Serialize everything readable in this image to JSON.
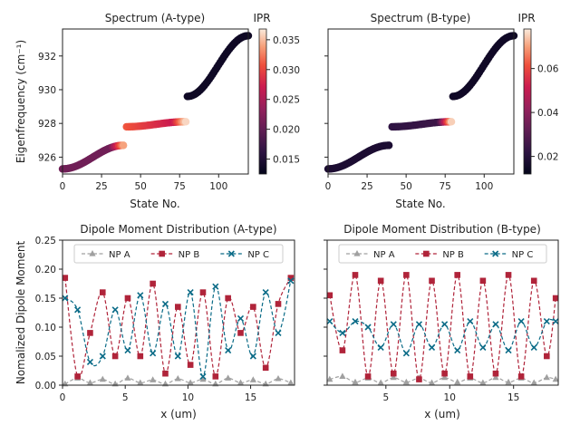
{
  "chart_data": [
    {
      "type": "scatter",
      "title": "Spectrum (A-type)",
      "xlabel": "State No.",
      "ylabel": "Eigenfrequency (cm⁻¹)",
      "xlim": [
        0,
        119
      ],
      "ylim": [
        925.0,
        933.6
      ],
      "xticks": [
        "0",
        "25",
        "50",
        "75",
        "100"
      ],
      "yticks": [
        "926",
        "928",
        "930",
        "932"
      ],
      "colorbar": {
        "label": "IPR",
        "range": [
          0.0125,
          0.0368
        ],
        "ticks": [
          "0.015",
          "0.020",
          "0.025",
          "0.030",
          "0.035"
        ]
      },
      "segments": [
        {
          "x": [
            0,
            39
          ],
          "y": [
            925.3,
            926.7
          ],
          "ipr": [
            0.021,
            0.021,
            0.034
          ]
        },
        {
          "x": [
            41,
            79
          ],
          "y": [
            927.8,
            928.1
          ],
          "ipr": [
            0.031,
            0.027,
            0.036
          ]
        },
        {
          "x": [
            80,
            119
          ],
          "y": [
            929.6,
            933.2
          ],
          "ipr": [
            0.0135,
            0.0135,
            0.0135
          ]
        }
      ]
    },
    {
      "type": "scatter",
      "title": "Spectrum (B-type)",
      "xlabel": "State No.",
      "ylabel": "",
      "xlim": [
        0,
        119
      ],
      "ylim": [
        925.0,
        933.6
      ],
      "xticks": [
        "0",
        "25",
        "50",
        "75",
        "100"
      ],
      "colorbar": {
        "label": "IPR",
        "range": [
          0.012,
          0.078
        ],
        "ticks": [
          "0.02",
          "0.04",
          "0.06"
        ]
      },
      "segments": [
        {
          "x": [
            0,
            39
          ],
          "y": [
            925.3,
            926.7
          ],
          "ipr": [
            0.018,
            0.018,
            0.018
          ]
        },
        {
          "x": [
            41,
            79
          ],
          "y": [
            927.8,
            928.1
          ],
          "ipr": [
            0.022,
            0.025,
            0.075
          ]
        },
        {
          "x": [
            80,
            119
          ],
          "y": [
            929.6,
            933.2
          ],
          "ipr": [
            0.015,
            0.015,
            0.015
          ]
        }
      ]
    },
    {
      "type": "line",
      "title": "Dipole Moment Distribution (A-type)",
      "xlabel": "x (um)",
      "ylabel": "Nomalized Dipole Moment",
      "xlim": [
        0,
        18.5
      ],
      "ylim": [
        0,
        0.25
      ],
      "xticks": [
        "0",
        "5",
        "10",
        "15"
      ],
      "yticks": [
        "0.00",
        "0.05",
        "0.10",
        "0.15",
        "0.20",
        "0.25"
      ],
      "legend": [
        "NP A",
        "NP B",
        "NP C"
      ],
      "x": [
        0.2,
        1.2,
        2.2,
        3.2,
        4.2,
        5.2,
        6.2,
        7.2,
        8.2,
        9.2,
        10.2,
        11.2,
        12.2,
        13.2,
        14.2,
        15.2,
        16.2,
        17.2,
        18.2
      ],
      "series": [
        {
          "name": "NP A",
          "values": [
            0.002,
            0.012,
            0.004,
            0.01,
            0.002,
            0.012,
            0.004,
            0.009,
            0.002,
            0.011,
            0.004,
            0.01,
            0.002,
            0.012,
            0.004,
            0.009,
            0.002,
            0.011,
            0.004
          ]
        },
        {
          "name": "NP B",
          "values": [
            0.185,
            0.015,
            0.09,
            0.16,
            0.05,
            0.15,
            0.05,
            0.175,
            0.02,
            0.135,
            0.035,
            0.16,
            0.015,
            0.15,
            0.09,
            0.135,
            0.03,
            0.14,
            0.185
          ]
        },
        {
          "name": "NP C",
          "values": [
            0.15,
            0.13,
            0.04,
            0.05,
            0.13,
            0.06,
            0.155,
            0.055,
            0.14,
            0.05,
            0.16,
            0.015,
            0.17,
            0.06,
            0.115,
            0.05,
            0.16,
            0.09,
            0.18
          ]
        }
      ]
    },
    {
      "type": "line",
      "title": "Dipole Moment Distribution (B-type)",
      "xlabel": "x (um)",
      "ylabel": "",
      "xlim": [
        0.4,
        18.5
      ],
      "ylim": [
        0,
        0.25
      ],
      "xticks": [
        "5",
        "10",
        "15"
      ],
      "legend": [
        "NP A",
        "NP B",
        "NP C"
      ],
      "x": [
        0.6,
        1.6,
        2.6,
        3.6,
        4.6,
        5.6,
        6.6,
        7.6,
        8.6,
        9.6,
        10.6,
        11.6,
        12.6,
        13.6,
        14.6,
        15.6,
        16.6,
        17.6,
        18.3
      ],
      "series": [
        {
          "name": "NP A",
          "values": [
            0.01,
            0.015,
            0.005,
            0.012,
            0.004,
            0.013,
            0.005,
            0.012,
            0.004,
            0.013,
            0.005,
            0.012,
            0.004,
            0.013,
            0.005,
            0.012,
            0.004,
            0.013,
            0.01
          ]
        },
        {
          "name": "NP B",
          "values": [
            0.155,
            0.06,
            0.19,
            0.015,
            0.18,
            0.02,
            0.19,
            0.01,
            0.18,
            0.02,
            0.19,
            0.015,
            0.18,
            0.02,
            0.19,
            0.015,
            0.18,
            0.05,
            0.15
          ]
        },
        {
          "name": "NP C",
          "values": [
            0.11,
            0.09,
            0.11,
            0.1,
            0.065,
            0.105,
            0.055,
            0.105,
            0.065,
            0.105,
            0.06,
            0.11,
            0.065,
            0.105,
            0.06,
            0.11,
            0.065,
            0.11,
            0.11
          ]
        }
      ]
    }
  ],
  "colors": {
    "npA": "#a0a0a0",
    "npB": "#b0243a",
    "npC": "#0a6b87",
    "frame": "#222222"
  }
}
